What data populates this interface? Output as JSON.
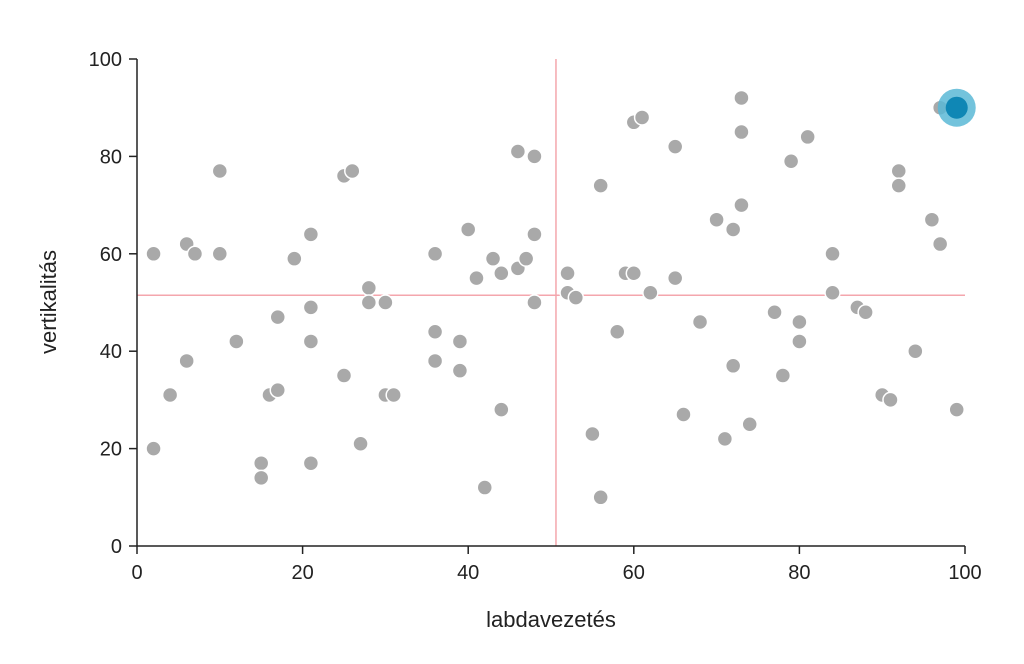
{
  "chart_data": {
    "type": "scatter",
    "title": "",
    "xlabel": "labdavezetés",
    "ylabel": "vertikalitás",
    "xlim": [
      0,
      100
    ],
    "ylim": [
      0,
      100
    ],
    "x_ticks": [
      0,
      20,
      40,
      60,
      80,
      100
    ],
    "y_ticks": [
      0,
      20,
      40,
      60,
      80,
      100
    ],
    "grid": false,
    "reference_lines": {
      "x": 50.6,
      "y": 51.5
    },
    "colors": {
      "points": "#a9a9a9",
      "points_stroke": "#ffffff",
      "highlight": "#0f87b5",
      "highlight_halo": "#5bb8d6",
      "reference_lines": "#f4a6ad",
      "axis": "#222222"
    },
    "points": [
      {
        "x": 2,
        "y": 60
      },
      {
        "x": 2,
        "y": 20
      },
      {
        "x": 4,
        "y": 31
      },
      {
        "x": 6,
        "y": 62
      },
      {
        "x": 7,
        "y": 60
      },
      {
        "x": 6,
        "y": 38
      },
      {
        "x": 10,
        "y": 77
      },
      {
        "x": 10,
        "y": 60
      },
      {
        "x": 12,
        "y": 42
      },
      {
        "x": 15,
        "y": 17
      },
      {
        "x": 15,
        "y": 14
      },
      {
        "x": 16,
        "y": 31
      },
      {
        "x": 17,
        "y": 32
      },
      {
        "x": 17,
        "y": 47
      },
      {
        "x": 19,
        "y": 59
      },
      {
        "x": 21,
        "y": 64
      },
      {
        "x": 21,
        "y": 49
      },
      {
        "x": 21,
        "y": 42
      },
      {
        "x": 21,
        "y": 17
      },
      {
        "x": 25,
        "y": 76
      },
      {
        "x": 26,
        "y": 77
      },
      {
        "x": 25,
        "y": 35
      },
      {
        "x": 27,
        "y": 21
      },
      {
        "x": 28,
        "y": 53
      },
      {
        "x": 28,
        "y": 50
      },
      {
        "x": 30,
        "y": 50
      },
      {
        "x": 30,
        "y": 31
      },
      {
        "x": 31,
        "y": 31
      },
      {
        "x": 36,
        "y": 60
      },
      {
        "x": 36,
        "y": 44
      },
      {
        "x": 36,
        "y": 38
      },
      {
        "x": 39,
        "y": 42
      },
      {
        "x": 39,
        "y": 36
      },
      {
        "x": 40,
        "y": 65
      },
      {
        "x": 41,
        "y": 55
      },
      {
        "x": 42,
        "y": 12
      },
      {
        "x": 43,
        "y": 59
      },
      {
        "x": 44,
        "y": 56
      },
      {
        "x": 44,
        "y": 28
      },
      {
        "x": 46,
        "y": 81
      },
      {
        "x": 46,
        "y": 57
      },
      {
        "x": 47,
        "y": 59
      },
      {
        "x": 48,
        "y": 80
      },
      {
        "x": 48,
        "y": 64
      },
      {
        "x": 48,
        "y": 50
      },
      {
        "x": 52,
        "y": 56
      },
      {
        "x": 52,
        "y": 52
      },
      {
        "x": 53,
        "y": 51
      },
      {
        "x": 55,
        "y": 23
      },
      {
        "x": 56,
        "y": 74
      },
      {
        "x": 56,
        "y": 10
      },
      {
        "x": 58,
        "y": 44
      },
      {
        "x": 59,
        "y": 56
      },
      {
        "x": 60,
        "y": 56
      },
      {
        "x": 60,
        "y": 87
      },
      {
        "x": 61,
        "y": 88
      },
      {
        "x": 62,
        "y": 52
      },
      {
        "x": 65,
        "y": 82
      },
      {
        "x": 65,
        "y": 55
      },
      {
        "x": 66,
        "y": 27
      },
      {
        "x": 68,
        "y": 46
      },
      {
        "x": 70,
        "y": 67
      },
      {
        "x": 71,
        "y": 22
      },
      {
        "x": 72,
        "y": 65
      },
      {
        "x": 72,
        "y": 37
      },
      {
        "x": 73,
        "y": 92
      },
      {
        "x": 73,
        "y": 85
      },
      {
        "x": 73,
        "y": 70
      },
      {
        "x": 74,
        "y": 25
      },
      {
        "x": 77,
        "y": 48
      },
      {
        "x": 78,
        "y": 35
      },
      {
        "x": 79,
        "y": 79
      },
      {
        "x": 80,
        "y": 46
      },
      {
        "x": 80,
        "y": 42
      },
      {
        "x": 81,
        "y": 84
      },
      {
        "x": 84,
        "y": 60
      },
      {
        "x": 84,
        "y": 52
      },
      {
        "x": 87,
        "y": 49
      },
      {
        "x": 88,
        "y": 48
      },
      {
        "x": 90,
        "y": 31
      },
      {
        "x": 91,
        "y": 30
      },
      {
        "x": 92,
        "y": 77
      },
      {
        "x": 92,
        "y": 74
      },
      {
        "x": 94,
        "y": 40
      },
      {
        "x": 96,
        "y": 67
      },
      {
        "x": 97,
        "y": 62
      },
      {
        "x": 97,
        "y": 90
      },
      {
        "x": 99,
        "y": 28
      }
    ],
    "highlight_point": {
      "x": 99,
      "y": 90
    }
  }
}
